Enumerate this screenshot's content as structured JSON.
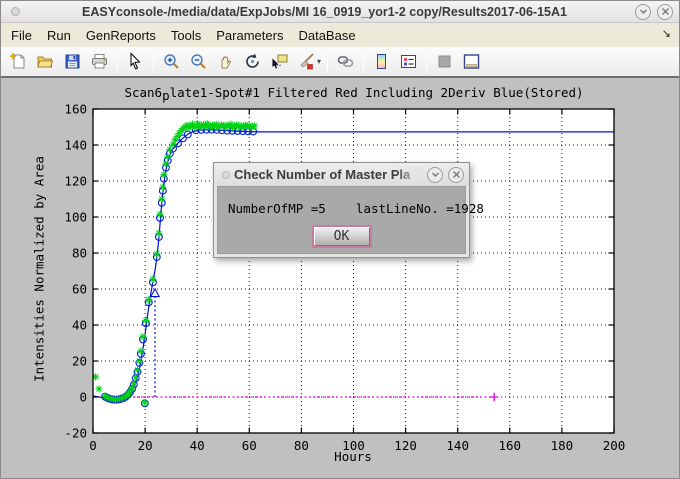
{
  "window": {
    "title": "EASYconsole-/media/data/ExpJobs/MI 16_0919_yor1-2 copy/Results2017-06-15A1",
    "controls": {
      "minimize_glyph": "v",
      "close_glyph": "x"
    }
  },
  "menu": {
    "items": [
      "File",
      "Run",
      "GenReports",
      "Tools",
      "Parameters",
      "DataBase"
    ],
    "overflow_glyph": "↘"
  },
  "toolbar": {
    "buttons": [
      "new-file",
      "open-file",
      "save",
      "print",
      "pointer-tool",
      "zoom-in",
      "zoom-out",
      "pan",
      "rotate-3d",
      "data-cursor",
      "brush",
      "link-plots",
      "insert-colorbar",
      "insert-legend",
      "plot-tools-off",
      "plot-tools-on"
    ],
    "brush_dropdown_glyph": "▾"
  },
  "dialog": {
    "title": "Check Number of Master Pla",
    "message": "NumberOfMP =5    lastLineNo. =1928",
    "ok_label": "OK",
    "controls": {
      "minimize_glyph": "v",
      "close_glyph": "x"
    }
  },
  "chart_data": {
    "type": "line",
    "title_parts": {
      "prefix": "Scan6",
      "subscript": "p",
      "suffix": "late1-Spot#1 Filtered Red Including 2Deriv Blue(Stored)"
    },
    "xlabel": "Hours",
    "ylabel": "Intensities Normalized by Area",
    "xlim": [
      0,
      200
    ],
    "ylim": [
      -20,
      160
    ],
    "xticks": [
      0,
      20,
      40,
      60,
      80,
      100,
      120,
      140,
      160,
      180,
      200
    ],
    "yticks": [
      -20,
      0,
      20,
      40,
      60,
      80,
      100,
      120,
      140,
      160
    ],
    "grid": true,
    "colors": {
      "fit": "#0010d0",
      "points": "#0022cc",
      "raw": "#00d214",
      "baseline": "#e000e0"
    },
    "series": [
      {
        "name": "baseline-zero",
        "type": "line",
        "style": "dotted",
        "color": "#e000e0",
        "end_marker": "plus",
        "points": [
          [
            0,
            0
          ],
          [
            154,
            0
          ]
        ]
      },
      {
        "name": "inflection-drop",
        "type": "line",
        "style": "dotted",
        "color": "#0010d0",
        "end_marker": "triangle-up",
        "points": [
          [
            23.8,
            0
          ],
          [
            23.8,
            57.6
          ]
        ]
      },
      {
        "name": "fitted-curve",
        "type": "line",
        "style": "solid",
        "color": "#0010d0",
        "points": [
          [
            0,
            0.6
          ],
          [
            2,
            0.1
          ],
          [
            4,
            -0.4
          ],
          [
            6,
            -1.0
          ],
          [
            8,
            -1.4
          ],
          [
            10,
            -1.3
          ],
          [
            11.5,
            -0.9
          ],
          [
            13,
            0.3
          ],
          [
            14,
            1.5
          ],
          [
            15,
            3.5
          ],
          [
            16,
            6.5
          ],
          [
            17,
            11
          ],
          [
            18,
            17
          ],
          [
            19,
            25
          ],
          [
            20,
            35
          ],
          [
            21,
            46
          ],
          [
            22,
            56
          ],
          [
            23,
            64
          ],
          [
            24,
            72
          ],
          [
            24.8,
            81
          ],
          [
            25.5,
            92
          ],
          [
            26,
            101
          ],
          [
            26.5,
            109
          ],
          [
            27,
            116
          ],
          [
            27.5,
            121.5
          ],
          [
            28,
            126
          ],
          [
            28.7,
            130.5
          ],
          [
            29.5,
            134.5
          ],
          [
            30.7,
            137.8
          ],
          [
            32.6,
            141
          ],
          [
            34.5,
            143.8
          ],
          [
            36.4,
            146
          ],
          [
            38.5,
            147.5
          ],
          [
            41,
            148.3
          ],
          [
            44,
            148.5
          ],
          [
            48,
            148.3
          ],
          [
            53,
            147.9
          ],
          [
            58,
            147.5
          ],
          [
            64,
            147.3
          ],
          [
            200,
            147.3
          ]
        ]
      },
      {
        "name": "filtered-points",
        "type": "scatter",
        "marker": "circle",
        "color": "#0022cc",
        "points": [
          [
            4.6,
            0.2
          ],
          [
            5.4,
            -0.4
          ],
          [
            6.2,
            -0.9
          ],
          [
            7,
            -1.2
          ],
          [
            7.8,
            -1.4
          ],
          [
            8.6,
            -1.5
          ],
          [
            9.4,
            -1.4
          ],
          [
            10.2,
            -1.2
          ],
          [
            11,
            -0.9
          ],
          [
            11.8,
            -0.5
          ],
          [
            12.6,
            0.2
          ],
          [
            13.4,
            1.2
          ],
          [
            14.2,
            2.6
          ],
          [
            15,
            4.5
          ],
          [
            15.7,
            7
          ],
          [
            16.4,
            10.5
          ],
          [
            17.1,
            14
          ],
          [
            17.8,
            19
          ],
          [
            18.4,
            24
          ],
          [
            19.2,
            32
          ],
          [
            20.3,
            41
          ],
          [
            21.4,
            52.6
          ],
          [
            23,
            63.7
          ],
          [
            24.5,
            77.7
          ],
          [
            25.3,
            88.9
          ],
          [
            25.7,
            99.5
          ],
          [
            26.4,
            107.9
          ],
          [
            26.8,
            114.6
          ],
          [
            27.2,
            121.3
          ],
          [
            28,
            127.4
          ],
          [
            28.7,
            131.4
          ],
          [
            29.5,
            135.3
          ],
          [
            30.7,
            138
          ],
          [
            32.6,
            140.9
          ],
          [
            34.5,
            143.7
          ],
          [
            36.4,
            145.9
          ],
          [
            39.5,
            148.2
          ],
          [
            41.5,
            148.4
          ],
          [
            43.5,
            148.5
          ],
          [
            45.5,
            148.5
          ],
          [
            47.5,
            148.4
          ],
          [
            49.5,
            148.2
          ],
          [
            51.5,
            148
          ],
          [
            53.5,
            147.9
          ],
          [
            55.5,
            147.8
          ],
          [
            57.5,
            147.7
          ],
          [
            59.5,
            147.6
          ],
          [
            61.5,
            147.5
          ],
          [
            19.9,
            -3.5
          ]
        ]
      },
      {
        "name": "raw-green-stars",
        "type": "scatter",
        "marker": "asterisk",
        "color": "#00d214",
        "points": [
          [
            1,
            11.2
          ],
          [
            2.3,
            4.5
          ],
          [
            4.6,
            0.5
          ],
          [
            5.4,
            -0.2
          ],
          [
            6.2,
            -0.7
          ],
          [
            7,
            -1
          ],
          [
            7.8,
            -1.2
          ],
          [
            8.6,
            -1.3
          ],
          [
            9.4,
            -1.2
          ],
          [
            10.2,
            -1
          ],
          [
            11,
            -0.7
          ],
          [
            11.8,
            -0.3
          ],
          [
            12.6,
            0.5
          ],
          [
            13.4,
            1.5
          ],
          [
            14.2,
            3
          ],
          [
            15,
            5
          ],
          [
            15.7,
            7.5
          ],
          [
            16.4,
            11
          ],
          [
            17.1,
            15
          ],
          [
            17.8,
            20
          ],
          [
            18.4,
            25.5
          ],
          [
            19.2,
            33.5
          ],
          [
            20.3,
            42.5
          ],
          [
            21.4,
            54
          ],
          [
            23,
            65.5
          ],
          [
            24.5,
            79.5
          ],
          [
            25.3,
            91
          ],
          [
            25.7,
            101.5
          ],
          [
            26.4,
            110
          ],
          [
            26.8,
            116.5
          ],
          [
            27.2,
            123.5
          ],
          [
            28,
            129.5
          ],
          [
            28.7,
            133.5
          ],
          [
            29.5,
            137.5
          ],
          [
            30.7,
            140.5
          ],
          [
            31.5,
            143
          ],
          [
            32.3,
            144.8
          ],
          [
            33.1,
            146.5
          ],
          [
            33.9,
            148
          ],
          [
            34.7,
            149.3
          ],
          [
            35.4,
            150.2
          ],
          [
            36.1,
            151.0
          ],
          [
            36.8,
            149.6
          ],
          [
            37.5,
            150.8
          ],
          [
            38.2,
            151.6
          ],
          [
            38.9,
            149.9
          ],
          [
            39.6,
            150.4
          ],
          [
            40.3,
            151.8
          ],
          [
            41.0,
            149.7
          ],
          [
            41.7,
            150.9
          ],
          [
            42.4,
            151.3
          ],
          [
            43.1,
            150.1
          ],
          [
            43.8,
            151.9
          ],
          [
            44.5,
            150.5
          ],
          [
            45.2,
            149.8
          ],
          [
            45.9,
            151.1
          ],
          [
            46.6,
            150.7
          ],
          [
            47.3,
            151.5
          ],
          [
            48.0,
            149.9
          ],
          [
            48.7,
            150.3
          ],
          [
            49.4,
            151.2
          ],
          [
            50.1,
            150.8
          ],
          [
            50.8,
            149.7
          ],
          [
            51.5,
            151.0
          ],
          [
            52.2,
            150.4
          ],
          [
            52.9,
            151.6
          ],
          [
            53.6,
            149.8
          ],
          [
            54.3,
            150.6
          ],
          [
            55.0,
            151.2
          ],
          [
            55.7,
            150.0
          ],
          [
            56.4,
            150.9
          ],
          [
            57.1,
            149.6
          ],
          [
            57.8,
            150.5
          ],
          [
            58.5,
            151.1
          ],
          [
            59.2,
            150.2
          ],
          [
            59.9,
            150.8
          ],
          [
            60.6,
            150.0
          ],
          [
            61.3,
            150.4
          ],
          [
            62.0,
            150.6
          ],
          [
            19.9,
            -3.2
          ]
        ]
      }
    ]
  }
}
